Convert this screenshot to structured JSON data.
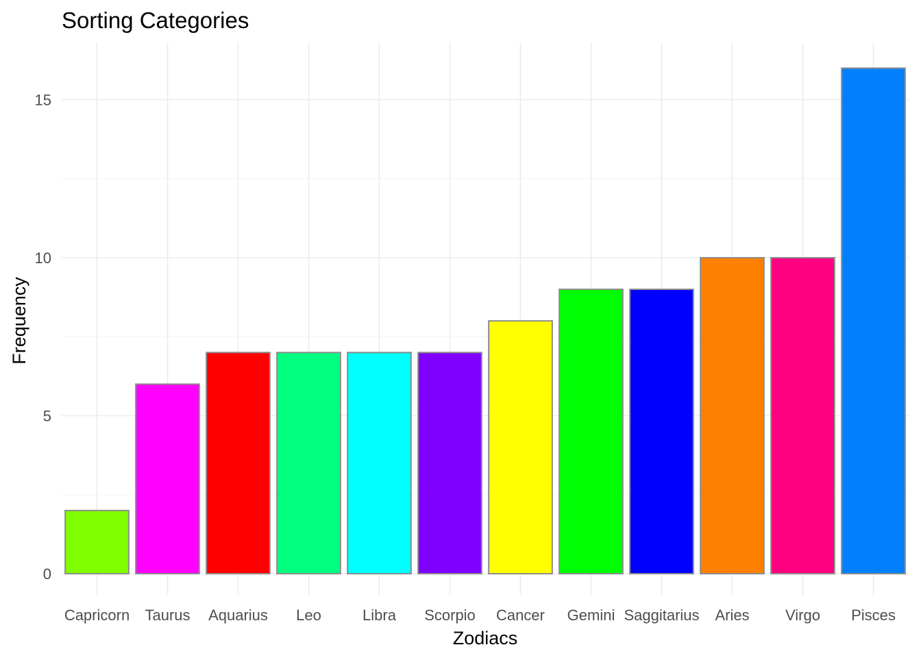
{
  "chart_data": {
    "type": "bar",
    "title": "Sorting Categories",
    "xlabel": "Zodiacs",
    "ylabel": "Frequency",
    "categories": [
      "Capricorn",
      "Taurus",
      "Aquarius",
      "Leo",
      "Libra",
      "Scorpio",
      "Cancer",
      "Gemini",
      "Saggitarius",
      "Aries",
      "Virgo",
      "Pisces"
    ],
    "values": [
      2,
      6,
      7,
      7,
      7,
      7,
      8,
      9,
      9,
      10,
      10,
      16
    ],
    "colors": [
      "#80FF00",
      "#FF00FF",
      "#FF0000",
      "#00FF80",
      "#00FFFF",
      "#8000FF",
      "#FFFF00",
      "#00FF00",
      "#0000FF",
      "#FF8000",
      "#FF0080",
      "#0080FF"
    ],
    "bar_outline_color": "#8c8c8c",
    "ylim": [
      0,
      16
    ],
    "y_ticks": [
      0,
      5,
      10,
      15
    ],
    "y_tick_labels": [
      "0",
      "5",
      "10",
      "15"
    ],
    "grid": true,
    "legend": "none"
  }
}
